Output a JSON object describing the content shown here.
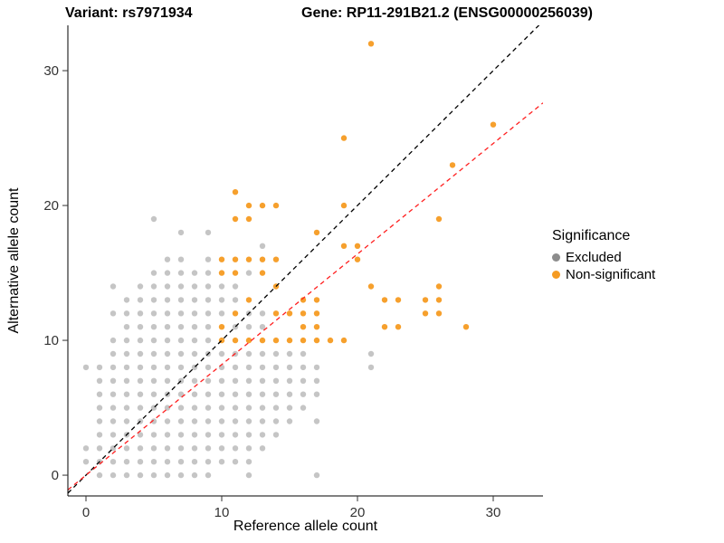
{
  "chart_data": {
    "type": "scatter",
    "title_left": "Variant: rs7971934",
    "title_right": "Gene: RP11-291B21.2 (ENSG00000256039)",
    "xlabel": "Reference allele count",
    "ylabel": "Alternative allele count",
    "xlim": [
      -1.333,
      33.667
    ],
    "ylim": [
      -1.54,
      33.36
    ],
    "x_ticks": [
      0,
      10,
      20,
      30
    ],
    "y_ticks": [
      0,
      10,
      20,
      30
    ],
    "grid": false,
    "legend": {
      "title": "Significance",
      "position": "right"
    },
    "series": [
      {
        "name": "Excluded",
        "color": "#8c8c8c",
        "opacity": 0.5,
        "points": [
          [
            1,
            0
          ],
          [
            2,
            0
          ],
          [
            3,
            0
          ],
          [
            4,
            0
          ],
          [
            5,
            0
          ],
          [
            6,
            0
          ],
          [
            7,
            0
          ],
          [
            8,
            0
          ],
          [
            9,
            0
          ],
          [
            12,
            0
          ],
          [
            17,
            0
          ],
          [
            0,
            1
          ],
          [
            1,
            1
          ],
          [
            2,
            1
          ],
          [
            3,
            1
          ],
          [
            4,
            1
          ],
          [
            5,
            1
          ],
          [
            6,
            1
          ],
          [
            7,
            1
          ],
          [
            8,
            1
          ],
          [
            9,
            1
          ],
          [
            10,
            1
          ],
          [
            11,
            1
          ],
          [
            12,
            1
          ],
          [
            0,
            2
          ],
          [
            1,
            2
          ],
          [
            2,
            2
          ],
          [
            3,
            2
          ],
          [
            4,
            2
          ],
          [
            5,
            2
          ],
          [
            6,
            2
          ],
          [
            7,
            2
          ],
          [
            8,
            2
          ],
          [
            9,
            2
          ],
          [
            10,
            2
          ],
          [
            11,
            2
          ],
          [
            12,
            2
          ],
          [
            13,
            2
          ],
          [
            1,
            3
          ],
          [
            2,
            3
          ],
          [
            3,
            3
          ],
          [
            4,
            3
          ],
          [
            5,
            3
          ],
          [
            6,
            3
          ],
          [
            7,
            3
          ],
          [
            8,
            3
          ],
          [
            9,
            3
          ],
          [
            10,
            3
          ],
          [
            11,
            3
          ],
          [
            12,
            3
          ],
          [
            13,
            3
          ],
          [
            14,
            3
          ],
          [
            1,
            4
          ],
          [
            2,
            4
          ],
          [
            3,
            4
          ],
          [
            4,
            4
          ],
          [
            5,
            4
          ],
          [
            6,
            4
          ],
          [
            7,
            4
          ],
          [
            8,
            4
          ],
          [
            9,
            4
          ],
          [
            10,
            4
          ],
          [
            11,
            4
          ],
          [
            12,
            4
          ],
          [
            13,
            4
          ],
          [
            14,
            4
          ],
          [
            15,
            4
          ],
          [
            17,
            4
          ],
          [
            1,
            5
          ],
          [
            2,
            5
          ],
          [
            3,
            5
          ],
          [
            4,
            5
          ],
          [
            5,
            5
          ],
          [
            6,
            5
          ],
          [
            7,
            5
          ],
          [
            8,
            5
          ],
          [
            9,
            5
          ],
          [
            10,
            5
          ],
          [
            11,
            5
          ],
          [
            12,
            5
          ],
          [
            13,
            5
          ],
          [
            14,
            5
          ],
          [
            15,
            5
          ],
          [
            16,
            5
          ],
          [
            1,
            6
          ],
          [
            2,
            6
          ],
          [
            3,
            6
          ],
          [
            4,
            6
          ],
          [
            5,
            6
          ],
          [
            6,
            6
          ],
          [
            7,
            6
          ],
          [
            8,
            6
          ],
          [
            9,
            6
          ],
          [
            10,
            6
          ],
          [
            11,
            6
          ],
          [
            12,
            6
          ],
          [
            13,
            6
          ],
          [
            14,
            6
          ],
          [
            15,
            6
          ],
          [
            16,
            6
          ],
          [
            17,
            6
          ],
          [
            1,
            7
          ],
          [
            2,
            7
          ],
          [
            3,
            7
          ],
          [
            4,
            7
          ],
          [
            5,
            7
          ],
          [
            6,
            7
          ],
          [
            7,
            7
          ],
          [
            8,
            7
          ],
          [
            9,
            7
          ],
          [
            10,
            7
          ],
          [
            11,
            7
          ],
          [
            12,
            7
          ],
          [
            13,
            7
          ],
          [
            14,
            7
          ],
          [
            15,
            7
          ],
          [
            16,
            7
          ],
          [
            17,
            7
          ],
          [
            0,
            8
          ],
          [
            1,
            8
          ],
          [
            2,
            8
          ],
          [
            3,
            8
          ],
          [
            4,
            8
          ],
          [
            5,
            8
          ],
          [
            6,
            8
          ],
          [
            7,
            8
          ],
          [
            8,
            8
          ],
          [
            9,
            8
          ],
          [
            10,
            8
          ],
          [
            11,
            8
          ],
          [
            12,
            8
          ],
          [
            13,
            8
          ],
          [
            14,
            8
          ],
          [
            15,
            8
          ],
          [
            16,
            8
          ],
          [
            17,
            8
          ],
          [
            21,
            8
          ],
          [
            2,
            9
          ],
          [
            3,
            9
          ],
          [
            4,
            9
          ],
          [
            5,
            9
          ],
          [
            6,
            9
          ],
          [
            7,
            9
          ],
          [
            8,
            9
          ],
          [
            9,
            9
          ],
          [
            10,
            9
          ],
          [
            11,
            9
          ],
          [
            12,
            9
          ],
          [
            13,
            9
          ],
          [
            14,
            9
          ],
          [
            15,
            9
          ],
          [
            16,
            9
          ],
          [
            21,
            9
          ],
          [
            2,
            10
          ],
          [
            3,
            10
          ],
          [
            4,
            10
          ],
          [
            5,
            10
          ],
          [
            6,
            10
          ],
          [
            7,
            10
          ],
          [
            8,
            10
          ],
          [
            9,
            10
          ],
          [
            3,
            11
          ],
          [
            4,
            11
          ],
          [
            5,
            11
          ],
          [
            6,
            11
          ],
          [
            7,
            11
          ],
          [
            8,
            11
          ],
          [
            9,
            11
          ],
          [
            11,
            11
          ],
          [
            12,
            11
          ],
          [
            13,
            11
          ],
          [
            2,
            12
          ],
          [
            3,
            12
          ],
          [
            4,
            12
          ],
          [
            5,
            12
          ],
          [
            6,
            12
          ],
          [
            7,
            12
          ],
          [
            8,
            12
          ],
          [
            9,
            12
          ],
          [
            10,
            12
          ],
          [
            12,
            12
          ],
          [
            13,
            12
          ],
          [
            3,
            13
          ],
          [
            4,
            13
          ],
          [
            5,
            13
          ],
          [
            6,
            13
          ],
          [
            7,
            13
          ],
          [
            8,
            13
          ],
          [
            9,
            13
          ],
          [
            10,
            13
          ],
          [
            11,
            13
          ],
          [
            2,
            14
          ],
          [
            4,
            14
          ],
          [
            5,
            14
          ],
          [
            6,
            14
          ],
          [
            7,
            14
          ],
          [
            8,
            14
          ],
          [
            9,
            14
          ],
          [
            10,
            14
          ],
          [
            11,
            14
          ],
          [
            5,
            15
          ],
          [
            6,
            15
          ],
          [
            7,
            15
          ],
          [
            8,
            15
          ],
          [
            9,
            15
          ],
          [
            12,
            15
          ],
          [
            6,
            16
          ],
          [
            7,
            16
          ],
          [
            9,
            16
          ],
          [
            13,
            17
          ],
          [
            7,
            18
          ],
          [
            9,
            18
          ],
          [
            5,
            19
          ]
        ]
      },
      {
        "name": "Non-significant",
        "color": "#f59b22",
        "opacity": 0.95,
        "points": [
          [
            10,
            10
          ],
          [
            11,
            10
          ],
          [
            12,
            10
          ],
          [
            13,
            10
          ],
          [
            14,
            10
          ],
          [
            15,
            10
          ],
          [
            16,
            10
          ],
          [
            17,
            10
          ],
          [
            18,
            10
          ],
          [
            19,
            10
          ],
          [
            10,
            11
          ],
          [
            16,
            11
          ],
          [
            17,
            11
          ],
          [
            22,
            11
          ],
          [
            23,
            11
          ],
          [
            28,
            11
          ],
          [
            11,
            12
          ],
          [
            14,
            12
          ],
          [
            15,
            12
          ],
          [
            16,
            12
          ],
          [
            17,
            12
          ],
          [
            25,
            12
          ],
          [
            26,
            12
          ],
          [
            12,
            13
          ],
          [
            16,
            13
          ],
          [
            17,
            13
          ],
          [
            22,
            13
          ],
          [
            23,
            13
          ],
          [
            25,
            13
          ],
          [
            26,
            13
          ],
          [
            14,
            14
          ],
          [
            21,
            14
          ],
          [
            26,
            14
          ],
          [
            10,
            15
          ],
          [
            11,
            15
          ],
          [
            13,
            15
          ],
          [
            10,
            16
          ],
          [
            11,
            16
          ],
          [
            12,
            16
          ],
          [
            13,
            16
          ],
          [
            14,
            16
          ],
          [
            20,
            16
          ],
          [
            19,
            17
          ],
          [
            20,
            17
          ],
          [
            17,
            18
          ],
          [
            11,
            19
          ],
          [
            12,
            19
          ],
          [
            26,
            19
          ],
          [
            12,
            20
          ],
          [
            13,
            20
          ],
          [
            14,
            20
          ],
          [
            19,
            20
          ],
          [
            11,
            21
          ],
          [
            27,
            23
          ],
          [
            19,
            25
          ],
          [
            30,
            26
          ],
          [
            21,
            32
          ]
        ]
      }
    ],
    "lines": [
      {
        "name": "identity-line",
        "color": "#000000",
        "slope": 1,
        "intercept": 0,
        "dash": "5,4"
      },
      {
        "name": "expected-ratio-line",
        "color": "#ff1f1f",
        "slope": 0.82,
        "intercept": 0,
        "dash": "5,4"
      }
    ]
  }
}
